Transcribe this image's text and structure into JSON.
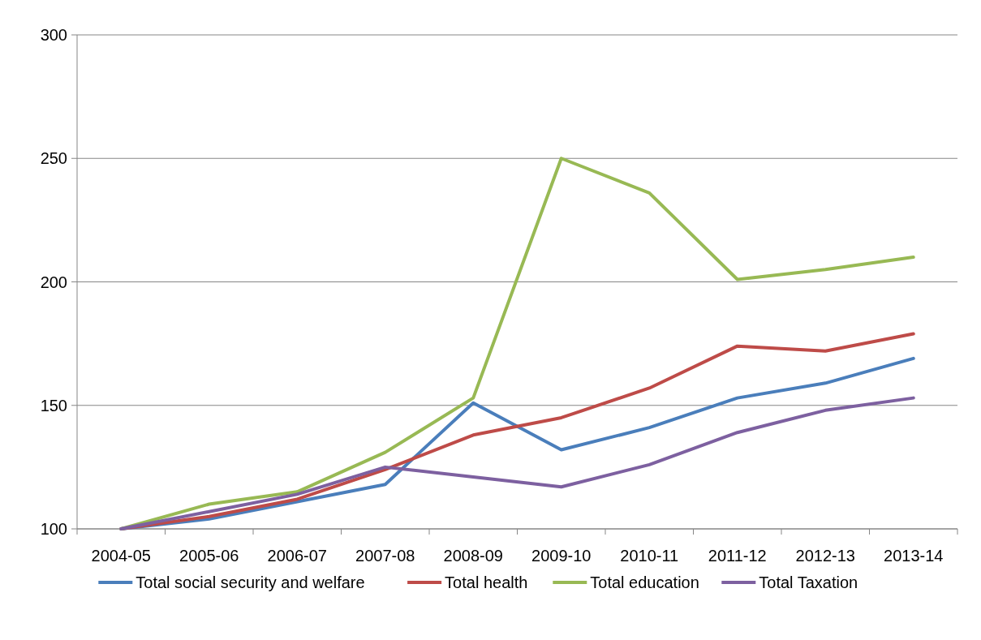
{
  "chart_data": {
    "type": "line",
    "categories": [
      "2004-05",
      "2005-06",
      "2006-07",
      "2007-08",
      "2008-09",
      "2009-10",
      "2010-11",
      "2011-12",
      "2012-13",
      "2013-14"
    ],
    "series": [
      {
        "name": "Total social security and welfare",
        "color": "#4a7ebb",
        "values": [
          100,
          104,
          111,
          118,
          151,
          132,
          141,
          153,
          159,
          169
        ]
      },
      {
        "name": "Total health",
        "color": "#be4b48",
        "values": [
          100,
          105,
          112,
          124,
          138,
          145,
          157,
          174,
          172,
          179
        ]
      },
      {
        "name": "Total education",
        "color": "#98b954",
        "values": [
          100,
          110,
          115,
          131,
          153,
          250,
          236,
          201,
          205,
          210
        ]
      },
      {
        "name": "Total Taxation",
        "color": "#7d60a0",
        "values": [
          100,
          107,
          114,
          125,
          121,
          117,
          126,
          139,
          148,
          153
        ]
      }
    ],
    "ylim": [
      100,
      300
    ],
    "yticks": [
      100,
      150,
      200,
      250,
      300
    ],
    "grid": "y",
    "legend": "bottom",
    "marker": "none",
    "line_style": "solid"
  }
}
